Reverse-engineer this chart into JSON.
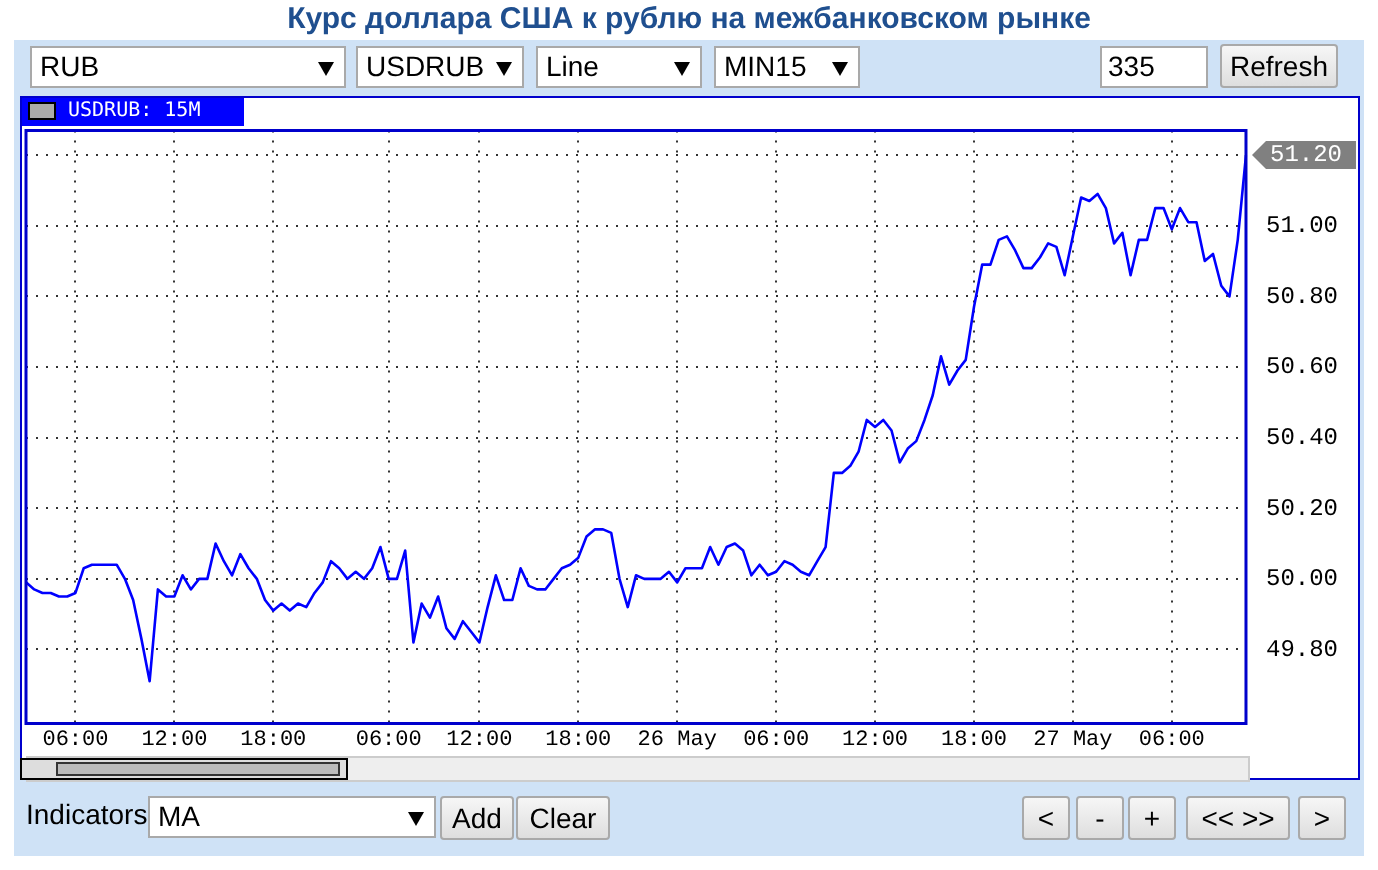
{
  "chart_data": {
    "type": "line",
    "title": "Курс доллара США к рублю на межбанковском рынке",
    "categories": [
      null,
      null,
      null,
      null,
      null,
      null,
      "06:00",
      null,
      null,
      null,
      null,
      null,
      null,
      null,
      null,
      null,
      null,
      null,
      "12:00",
      null,
      null,
      null,
      null,
      null,
      null,
      null,
      null,
      null,
      null,
      null,
      "18:00",
      null,
      null,
      null,
      null,
      null,
      null,
      null,
      null,
      null,
      null,
      null,
      null,
      null,
      "06:00",
      null,
      null,
      null,
      null,
      null,
      null,
      null,
      null,
      null,
      null,
      "12:00",
      null,
      null,
      null,
      null,
      null,
      null,
      null,
      null,
      null,
      null,
      null,
      "18:00",
      null,
      null,
      null,
      null,
      null,
      null,
      null,
      null,
      null,
      null,
      null,
      "26 May",
      null,
      null,
      null,
      null,
      null,
      null,
      null,
      null,
      null,
      null,
      null,
      "06:00",
      null,
      null,
      null,
      null,
      null,
      null,
      null,
      null,
      null,
      null,
      null,
      "12:00",
      null,
      null,
      null,
      null,
      null,
      null,
      null,
      null,
      null,
      null,
      null,
      "18:00",
      null,
      null,
      null,
      null,
      null,
      null,
      null,
      null,
      null,
      null,
      null,
      "27 May",
      null,
      null,
      null,
      null,
      null,
      null,
      null,
      null,
      null,
      null,
      null,
      "06:00",
      null,
      null,
      null,
      null,
      null,
      null,
      null,
      null,
      null
    ],
    "series": [
      {
        "color": "#0000ff",
        "values": [
          49.99,
          49.97,
          49.96,
          49.96,
          49.95,
          49.95,
          49.96,
          50.03,
          50.04,
          50.04,
          50.04,
          50.04,
          50.0,
          49.94,
          49.83,
          49.71,
          49.97,
          49.95,
          49.95,
          50.01,
          49.97,
          50.0,
          50.0,
          50.1,
          50.05,
          50.01,
          50.07,
          50.03,
          50.0,
          49.94,
          49.91,
          49.93,
          49.91,
          49.93,
          49.92,
          49.96,
          49.99,
          50.05,
          50.03,
          50.0,
          50.02,
          50.0,
          50.03,
          50.09,
          50.0,
          50.0,
          50.08,
          49.82,
          49.93,
          49.89,
          49.95,
          49.86,
          49.83,
          49.88,
          49.85,
          49.82,
          49.92,
          50.01,
          49.94,
          49.94,
          50.03,
          49.98,
          49.97,
          49.97,
          50.0,
          50.03,
          50.04,
          50.06,
          50.12,
          50.14,
          50.14,
          50.13,
          50.0,
          49.92,
          50.01,
          50.0,
          50.0,
          50.0,
          50.02,
          49.99,
          50.03,
          50.03,
          50.03,
          50.09,
          50.04,
          50.09,
          50.1,
          50.08,
          50.01,
          50.04,
          50.01,
          50.02,
          50.05,
          50.04,
          50.02,
          50.01,
          50.05,
          50.09,
          50.3,
          50.3,
          50.32,
          50.36,
          50.45,
          50.43,
          50.45,
          50.42,
          50.33,
          50.37,
          50.39,
          50.45,
          50.52,
          50.63,
          50.55,
          50.59,
          50.62,
          50.77,
          50.89,
          50.89,
          50.96,
          50.97,
          50.93,
          50.88,
          50.88,
          50.91,
          50.95,
          50.94,
          50.86,
          50.97,
          51.08,
          51.07,
          51.09,
          51.05,
          50.95,
          50.98,
          50.86,
          50.96,
          50.96,
          51.05,
          51.05,
          50.99,
          51.05,
          51.01,
          51.01,
          50.9,
          50.92,
          50.83,
          50.8,
          50.96,
          51.2
        ]
      }
    ],
    "ylim": [
      49.59,
      51.27
    ],
    "yticks": [
      {
        "value": 49.8,
        "label": "49.80"
      },
      {
        "value": 50,
        "label": "50.00"
      },
      {
        "value": 50.2,
        "label": "50.20"
      },
      {
        "value": 50.4,
        "label": "50.40"
      },
      {
        "value": 50.6,
        "label": "50.60"
      },
      {
        "value": 50.8,
        "label": "50.80"
      },
      {
        "value": 51,
        "label": "51.00"
      },
      {
        "value": 51.2,
        "label": null
      }
    ],
    "grid": true,
    "legend": false,
    "marker": "none",
    "line_style": "solid",
    "annotations": [
      "RUB",
      "USDRUB",
      "Line",
      "MIN15",
      "335",
      "Refresh",
      "USDRUB: 15M",
      "Indicators",
      "MA",
      "Add",
      "Clear",
      "<",
      "-",
      "+",
      "<< >>",
      ">",
      "51.20"
    ]
  }
}
